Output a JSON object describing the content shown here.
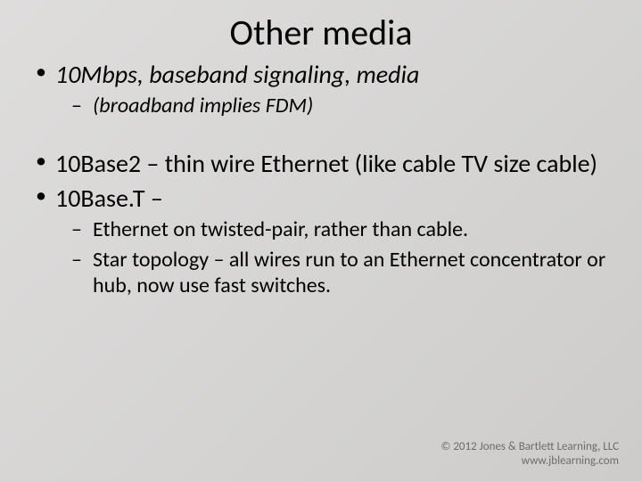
{
  "slide": {
    "title": "Other media",
    "bullets_group1": [
      {
        "text": "10Mbps, baseband signaling, media",
        "italic": true,
        "sub": [
          {
            "text": "(broadband implies FDM)",
            "italic": true
          }
        ]
      }
    ],
    "bullets_group2": [
      {
        "text": "10Base2 – thin wire Ethernet (like cable TV size cable)",
        "italic": false,
        "sub": []
      },
      {
        "text": "10Base.T –",
        "italic": false,
        "sub": [
          {
            "text": "Ethernet on twisted-pair, rather than cable.",
            "italic": false
          },
          {
            "text": "Star topology – all wires run to an Ethernet concentrator or hub, now use fast switches.",
            "italic": false
          }
        ]
      }
    ],
    "footer": {
      "line1": "© 2012 Jones & Bartlett Learning, LLC",
      "line2": "www.jblearning.com"
    }
  },
  "style": {
    "title_fontsize": 40,
    "level1_fontsize": 28,
    "level2_fontsize": 24,
    "footer_fontsize": 13,
    "text_color": "#000000",
    "footer_color": "#6c6c6c",
    "bg_gradient_from": "#dedddc",
    "bg_gradient_to": "#cdccca"
  }
}
